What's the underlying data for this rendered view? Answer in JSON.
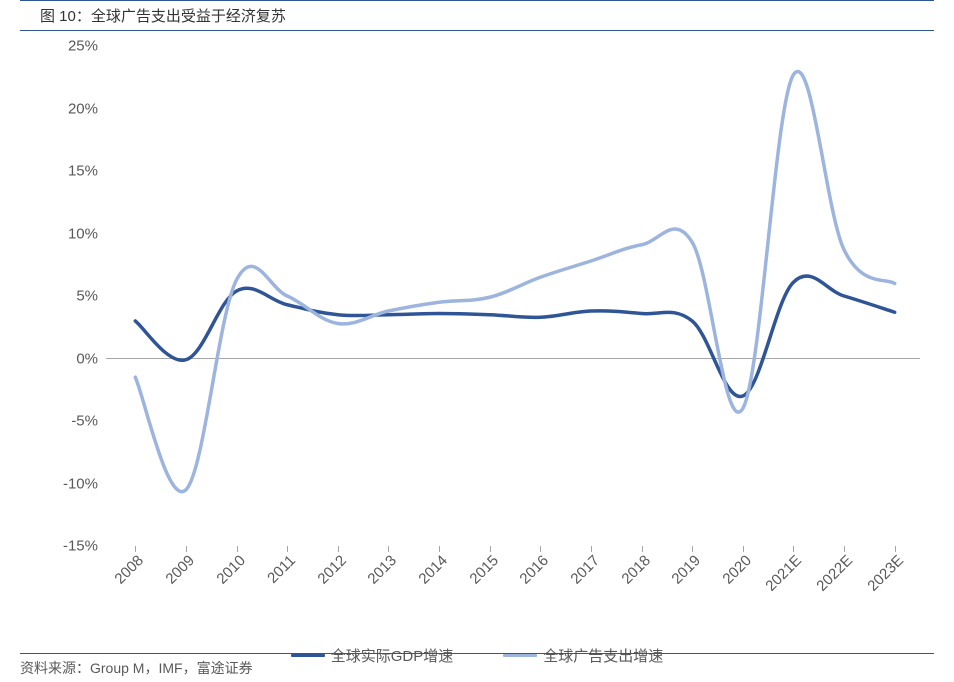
{
  "title": "图 10：全球广告支出受益于经济复苏",
  "source": "资料来源：Group M，IMF，富途证券",
  "chart": {
    "type": "line",
    "background_color": "#ffffff",
    "title_border_color": "#2f5597",
    "axis_text_color": "#595959",
    "axis_line_color": "#a6a6a6",
    "y": {
      "min": -15,
      "max": 25,
      "step": 5,
      "format": "percent",
      "fontsize": 15
    },
    "x": {
      "categories": [
        "2008",
        "2009",
        "2010",
        "2011",
        "2012",
        "2013",
        "2014",
        "2015",
        "2016",
        "2017",
        "2018",
        "2019",
        "2020",
        "2021E",
        "2022E",
        "2023E"
      ],
      "rotation": -45,
      "fontsize": 15
    },
    "series": [
      {
        "name": "全球实际GDP增速",
        "color": "#2f5597",
        "width": 3.5,
        "values": [
          3.0,
          -0.1,
          5.4,
          4.3,
          3.5,
          3.5,
          3.6,
          3.5,
          3.3,
          3.8,
          3.6,
          3.0,
          -3.0,
          6.1,
          5.0,
          3.7
        ]
      },
      {
        "name": "全球广告支出增速",
        "color": "#9cb4de",
        "width": 3.5,
        "values": [
          -1.5,
          -10.5,
          6.3,
          5.0,
          2.8,
          3.8,
          4.5,
          4.9,
          6.5,
          7.8,
          9.1,
          9.3,
          -4.0,
          22.7,
          8.7,
          6.0
        ]
      }
    ],
    "legend": {
      "position": "bottom",
      "fontsize": 15
    }
  }
}
